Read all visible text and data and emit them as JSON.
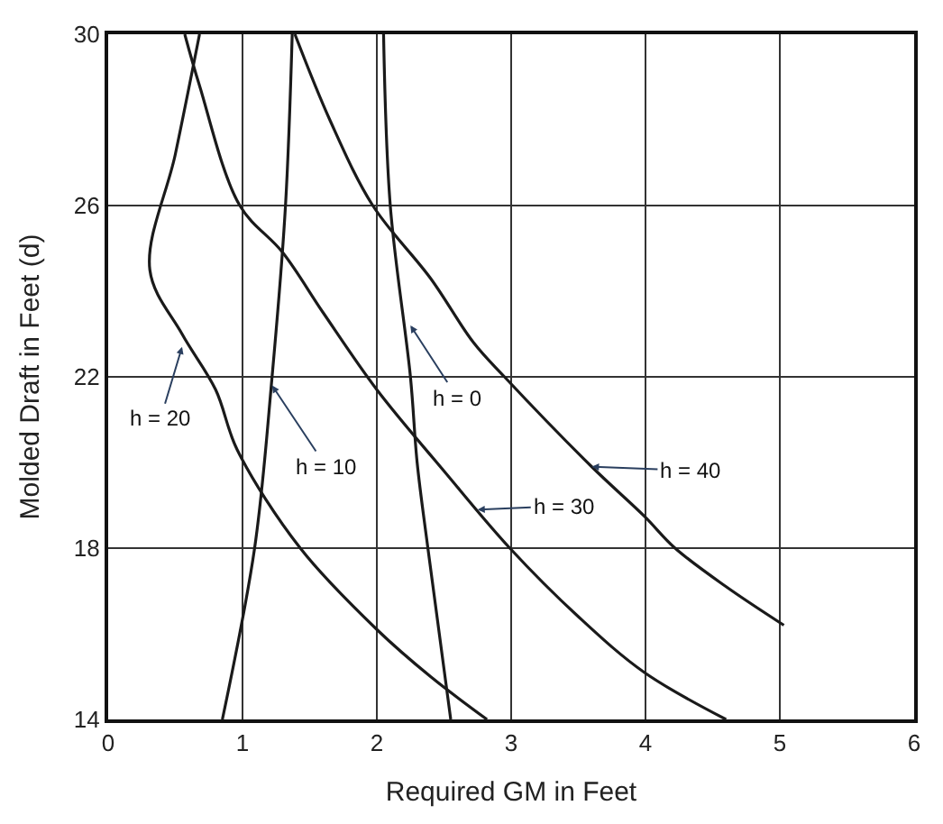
{
  "chart_data": {
    "type": "line",
    "xlabel": "Required GM in Feet",
    "ylabel": "Molded Draft in Feet (d)",
    "series": [
      {
        "color": "#1a1a1a",
        "x": [
          0.68,
          0.5,
          0.31,
          0.55,
          0.8,
          0.96,
          1.43,
          2.0,
          2.4,
          2.82
        ],
        "values": [
          30,
          27.2,
          24.5,
          23.0,
          21.7,
          20.3,
          18,
          16.1,
          15.0,
          14
        ]
      },
      {
        "color": "#1a1a1a",
        "x": [
          1.37,
          1.32,
          1.22,
          1.09,
          0.85
        ],
        "values": [
          30,
          26,
          22,
          18,
          14
        ]
      },
      {
        "color": "#1a1a1a",
        "x": [
          2.05,
          2.1,
          2.25,
          2.3,
          2.38,
          2.55
        ],
        "values": [
          30,
          26,
          22,
          20,
          18,
          14
        ]
      },
      {
        "color": "#1a1a1a",
        "x": [
          0.57,
          0.68,
          0.98,
          1.3,
          1.6,
          2.0,
          2.5,
          2.99,
          3.5,
          3.99,
          4.6
        ],
        "values": [
          30,
          28.8,
          26,
          24.9,
          23.5,
          21.7,
          19.8,
          18,
          16.4,
          15.1,
          14
        ]
      },
      {
        "color": "#1a1a1a",
        "x": [
          1.39,
          1.65,
          1.97,
          2.4,
          2.72,
          2.95,
          3.6,
          3.99,
          4.22,
          4.6,
          5.03
        ],
        "values": [
          30,
          28,
          26,
          24.3,
          22.8,
          22,
          19.9,
          18.75,
          18,
          17.1,
          16.2
        ]
      }
    ],
    "annotations": [
      {
        "text": "h = 20",
        "x": 0.55,
        "y": 22.7
      },
      {
        "text": "h = 10",
        "x": 1.22,
        "y": 21.8
      },
      {
        "text": "h = 0",
        "x": 2.25,
        "y": 23.2
      },
      {
        "text": "h = 30",
        "x": 2.75,
        "y": 18.9
      },
      {
        "text": "h = 40",
        "x": 3.6,
        "y": 19.9
      }
    ],
    "xlim": [
      0,
      6
    ],
    "ylim": [
      14,
      30
    ],
    "xticks": [
      0,
      1,
      2,
      3,
      4,
      5,
      6
    ],
    "yticks": [
      14,
      18,
      22,
      26,
      30
    ],
    "grid": true,
    "marker": "none",
    "line_style": "solid"
  }
}
